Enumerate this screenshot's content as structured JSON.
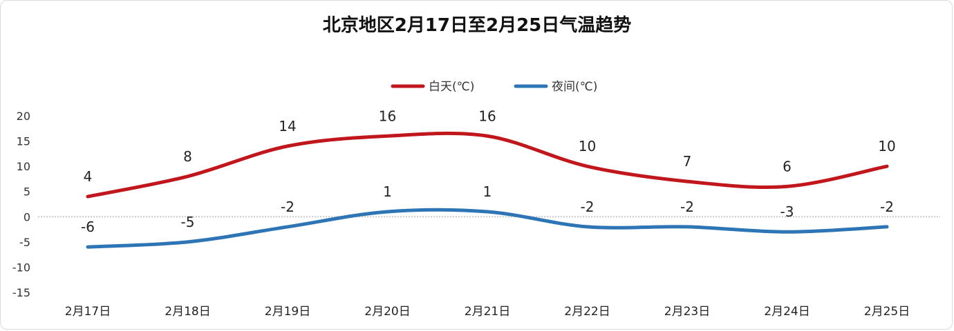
{
  "chart_data": {
    "type": "line",
    "title": "北京地区2月17日至2月25日气温趋势",
    "categories": [
      "2月17日",
      "2月18日",
      "2月19日",
      "2月20日",
      "2月21日",
      "2月22日",
      "2月23日",
      "2月24日",
      "2月25日"
    ],
    "series": [
      {
        "name": "白天(℃)",
        "color": "#c0161c",
        "values": [
          4,
          8,
          14,
          16,
          16,
          10,
          7,
          6,
          10
        ]
      },
      {
        "name": "夜间(℃)",
        "color": "#2e75b6",
        "values": [
          -6,
          -5,
          -2,
          1,
          1,
          -2,
          -2,
          -3,
          -2
        ]
      }
    ],
    "yticks": [
      20,
      15,
      10,
      5,
      0,
      -5,
      -10,
      -15
    ],
    "ylim": [
      -15,
      20
    ],
    "xlabel": "",
    "ylabel": "",
    "grid": false,
    "legend": "top"
  }
}
